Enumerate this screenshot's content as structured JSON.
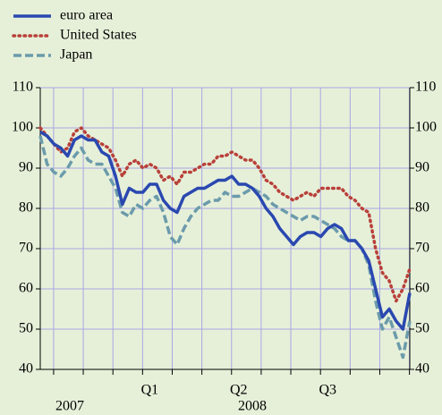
{
  "chart_data": {
    "type": "line",
    "categories": [
      null,
      null,
      null,
      null,
      null,
      null,
      null,
      null,
      null,
      null,
      null,
      null,
      null,
      null,
      null,
      null,
      "Q1",
      null,
      null,
      null,
      null,
      null,
      null,
      null,
      null,
      null,
      null,
      null,
      null,
      "Q2",
      null,
      null,
      null,
      null,
      null,
      null,
      null,
      null,
      null,
      null,
      null,
      null,
      "Q3",
      null,
      null,
      null,
      null,
      null,
      null,
      null,
      null,
      null,
      null,
      null,
      null
    ],
    "annotations": [
      "2007",
      "2008"
    ],
    "series": [
      {
        "name": "euro area",
        "color": "#2a48b0",
        "style": "solid",
        "values": [
          99,
          98,
          96,
          95,
          93,
          97,
          98,
          97,
          97,
          94,
          93,
          88,
          81,
          85,
          84,
          84,
          86,
          86,
          82,
          80,
          79,
          83,
          84,
          85,
          85,
          86,
          87,
          87,
          88,
          86,
          86,
          85,
          83,
          80,
          78,
          75,
          73,
          71,
          73,
          74,
          74,
          73,
          75,
          76,
          75,
          72,
          72,
          70,
          67,
          60,
          53,
          55,
          52,
          50,
          59
        ]
      },
      {
        "name": "United States",
        "color": "#b9403a",
        "style": "dotted",
        "values": [
          100,
          98,
          96,
          94,
          95,
          99,
          100,
          98,
          97,
          96,
          95,
          92,
          88,
          91,
          92,
          90,
          91,
          90,
          87,
          88,
          86,
          89,
          89,
          90,
          91,
          91,
          93,
          93,
          94,
          93,
          92,
          92,
          90,
          87,
          86,
          84,
          83,
          82,
          83,
          84,
          83,
          85,
          85,
          85,
          85,
          83,
          82,
          80,
          79,
          70,
          64,
          62,
          57,
          60,
          65
        ]
      },
      {
        "name": "Japan",
        "color": "#6b9bab",
        "style": "dashed",
        "values": [
          98,
          91,
          89,
          88,
          90,
          93,
          95,
          92,
          91,
          91,
          88,
          85,
          79,
          78,
          81,
          80,
          82,
          83,
          79,
          73,
          71,
          75,
          78,
          80,
          81,
          82,
          82,
          84,
          83,
          83,
          84,
          85,
          84,
          83,
          81,
          80,
          79,
          78,
          77,
          78,
          78,
          77,
          76,
          75,
          73,
          72,
          72,
          70,
          66,
          57,
          50,
          53,
          48,
          43,
          52
        ]
      }
    ],
    "ylim": [
      40,
      110
    ],
    "yticks": [
      40,
      50,
      60,
      70,
      80,
      90,
      100,
      110
    ],
    "y2lim": [
      40,
      110
    ],
    "y2ticks": [
      40,
      50,
      60,
      70,
      80,
      90,
      100,
      110
    ],
    "grid": true
  }
}
